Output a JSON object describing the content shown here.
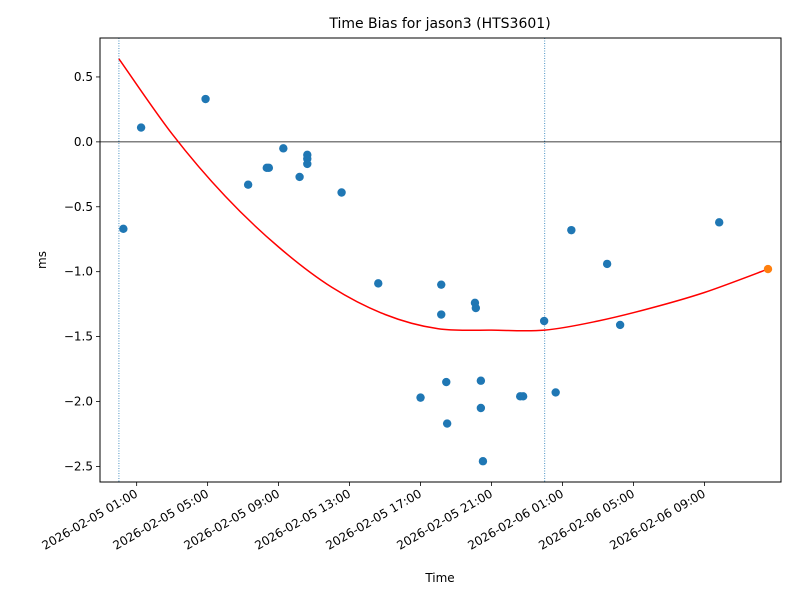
{
  "chart_data": {
    "type": "scatter",
    "title": "Time Bias for jason3 (HTS3601)",
    "xlabel": "Time",
    "ylabel": "ms",
    "xlim": [
      "2026-02-04T22:56:00",
      "2026-02-06T13:19:00"
    ],
    "ylim": [
      -2.62,
      0.8
    ],
    "yticks": [
      0.5,
      0.0,
      -0.5,
      -1.0,
      -1.5,
      -2.0,
      -2.5
    ],
    "ytick_labels": [
      "0.5",
      "0.0",
      "−0.5",
      "−1.0",
      "−1.5",
      "−2.0",
      "−2.5"
    ],
    "xticks": [
      "2026-02-05T01:00:00",
      "2026-02-05T05:00:00",
      "2026-02-05T09:00:00",
      "2026-02-05T13:00:00",
      "2026-02-05T17:00:00",
      "2026-02-05T21:00:00",
      "2026-02-06T01:00:00",
      "2026-02-06T05:00:00",
      "2026-02-06T09:00:00"
    ],
    "xtick_labels": [
      "2026-02-05 01:00",
      "2026-02-05 05:00",
      "2026-02-05 09:00",
      "2026-02-05 13:00",
      "2026-02-05 17:00",
      "2026-02-05 21:00",
      "2026-02-06 01:00",
      "2026-02-06 05:00",
      "2026-02-06 09:00"
    ],
    "grid": false,
    "hlines": [
      {
        "y": 0.0,
        "color": "#000000"
      }
    ],
    "vlines": [
      {
        "x": "2026-02-05T00:00:00",
        "color": "#1f77b4",
        "style": "dotted"
      },
      {
        "x": "2026-02-06T00:00:00",
        "color": "#1f77b4",
        "style": "dotted"
      }
    ],
    "series": [
      {
        "kind": "scatter",
        "color": "#1f77b4",
        "points": [
          {
            "x": "2026-02-05T00:15:00",
            "y": -0.67
          },
          {
            "x": "2026-02-05T01:15:00",
            "y": 0.11
          },
          {
            "x": "2026-02-05T04:53:00",
            "y": 0.33
          },
          {
            "x": "2026-02-05T07:17:00",
            "y": -0.33
          },
          {
            "x": "2026-02-05T08:20:00",
            "y": -0.2
          },
          {
            "x": "2026-02-05T08:27:00",
            "y": -0.2
          },
          {
            "x": "2026-02-05T09:16:00",
            "y": -0.05
          },
          {
            "x": "2026-02-05T10:11:00",
            "y": -0.27
          },
          {
            "x": "2026-02-05T10:37:00",
            "y": -0.1
          },
          {
            "x": "2026-02-05T10:37:00",
            "y": -0.13
          },
          {
            "x": "2026-02-05T10:37:00",
            "y": -0.17
          },
          {
            "x": "2026-02-05T12:33:00",
            "y": -0.39
          },
          {
            "x": "2026-02-05T14:37:00",
            "y": -1.09
          },
          {
            "x": "2026-02-05T17:00:00",
            "y": -1.97
          },
          {
            "x": "2026-02-05T18:10:00",
            "y": -1.1
          },
          {
            "x": "2026-02-05T18:10:00",
            "y": -1.33
          },
          {
            "x": "2026-02-05T18:27:00",
            "y": -1.85
          },
          {
            "x": "2026-02-05T18:30:00",
            "y": -2.17
          },
          {
            "x": "2026-02-05T20:04:00",
            "y": -1.24
          },
          {
            "x": "2026-02-05T20:07:00",
            "y": -1.28
          },
          {
            "x": "2026-02-05T20:24:00",
            "y": -1.84
          },
          {
            "x": "2026-02-05T20:24:00",
            "y": -2.05
          },
          {
            "x": "2026-02-05T20:31:00",
            "y": -2.46
          },
          {
            "x": "2026-02-05T22:37:00",
            "y": -1.96
          },
          {
            "x": "2026-02-05T22:47:00",
            "y": -1.96
          },
          {
            "x": "2026-02-05T23:58:00",
            "y": -1.38
          },
          {
            "x": "2026-02-06T00:37:00",
            "y": -1.93
          },
          {
            "x": "2026-02-06T01:30:00",
            "y": -0.68
          },
          {
            "x": "2026-02-06T03:31:00",
            "y": -0.94
          },
          {
            "x": "2026-02-06T04:15:00",
            "y": -1.41
          },
          {
            "x": "2026-02-06T09:50:00",
            "y": -0.62
          }
        ]
      },
      {
        "kind": "scatter",
        "color": "#ff7f0e",
        "points": [
          {
            "x": "2026-02-06T12:35:00",
            "y": -0.98
          }
        ]
      },
      {
        "kind": "line",
        "color": "#ff0000",
        "points": [
          {
            "x": "2026-02-05T00:00:00",
            "y": 0.64
          },
          {
            "x": "2026-02-05T03:00:00",
            "y": 0.06
          },
          {
            "x": "2026-02-05T06:00:00",
            "y": -0.42
          },
          {
            "x": "2026-02-05T09:00:00",
            "y": -0.81
          },
          {
            "x": "2026-02-05T12:00:00",
            "y": -1.12
          },
          {
            "x": "2026-02-05T15:00:00",
            "y": -1.33
          },
          {
            "x": "2026-02-05T18:00:00",
            "y": -1.44
          },
          {
            "x": "2026-02-05T21:00:00",
            "y": -1.45
          },
          {
            "x": "2026-02-06T00:00:00",
            "y": -1.45
          },
          {
            "x": "2026-02-06T03:00:00",
            "y": -1.38
          },
          {
            "x": "2026-02-06T06:00:00",
            "y": -1.28
          },
          {
            "x": "2026-02-06T09:00:00",
            "y": -1.16
          },
          {
            "x": "2026-02-06T12:35:00",
            "y": -0.98
          }
        ]
      }
    ]
  }
}
